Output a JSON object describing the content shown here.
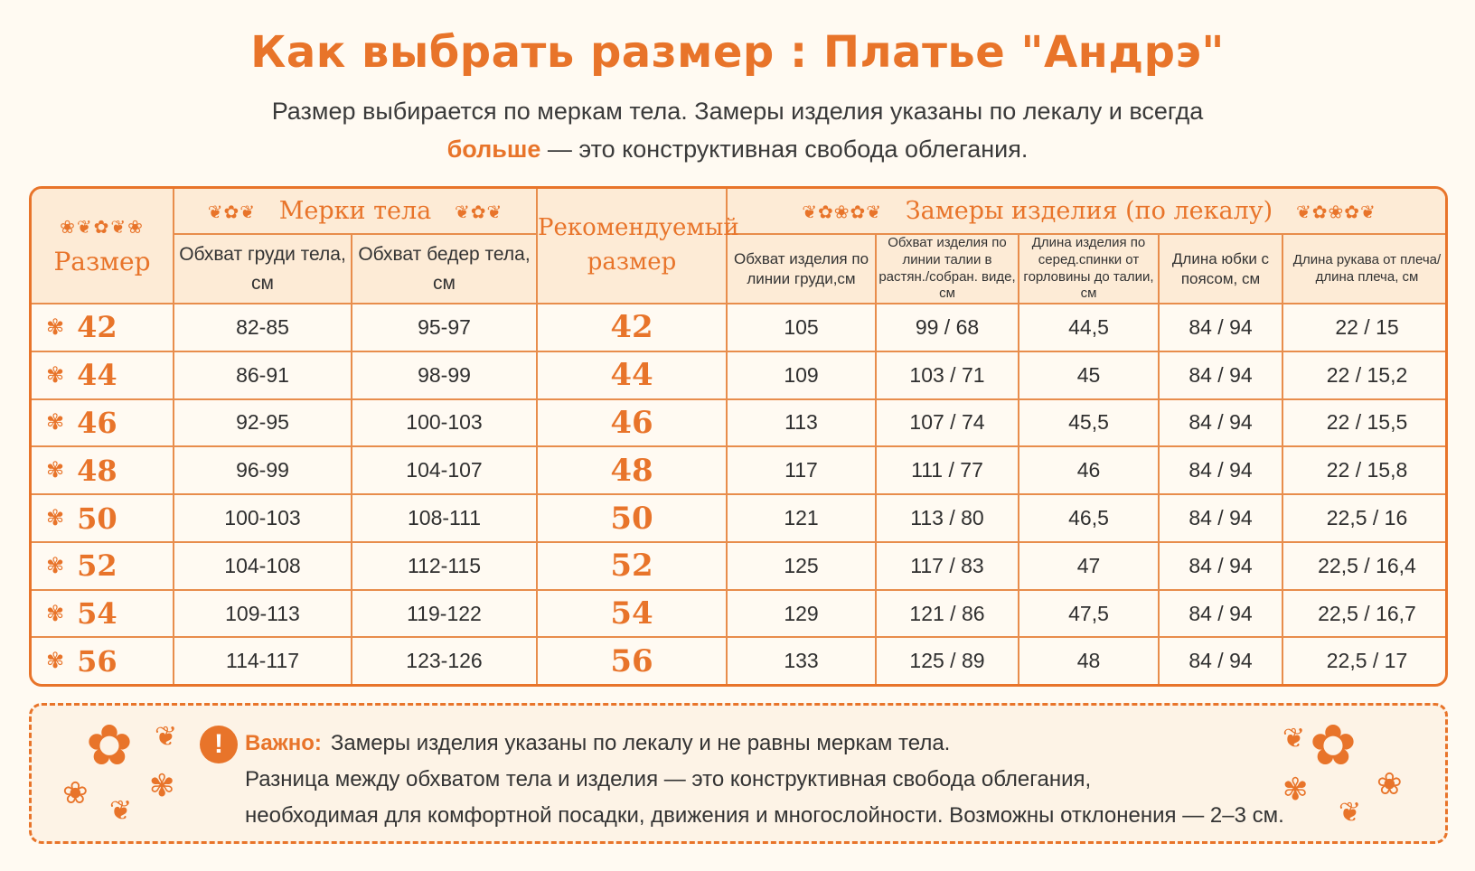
{
  "title": "Как выбрать размер :  Платье \"Андрэ\"",
  "subtitle_line1": "Размер выбирается по меркам тела. Замеры изделия указаны по лекалу и всегда",
  "subtitle_emphasis": "больше",
  "subtitle_line2_rest": " — это конструктивная свобода облегания.",
  "table": {
    "size_header": "Размер",
    "body_group": "Мерки тела",
    "recommended_header": "Рекомендуемый размер",
    "garment_group": "Замеры изделия (по лекалу)",
    "body_cols": [
      "Обхват груди тела, см",
      "Обхват бедер тела, см"
    ],
    "garment_cols": [
      "Обхват изделия по линии груди,см",
      "Обхват изделия по линии талии в растян./собран. виде, см",
      "Длина изделия по серед.спинки от горловины до талии, см",
      "Длина юбки с поясом, см",
      "Длина рукава от плеча/длина плеча, см"
    ],
    "rows": [
      {
        "size": "42",
        "chest": "82-85",
        "hips": "95-97",
        "rec": "42",
        "g_chest": "105",
        "g_waist": "99 / 68",
        "g_back": "44,5",
        "g_skirt": "84 / 94",
        "g_sleeve": "22 / 15"
      },
      {
        "size": "44",
        "chest": "86-91",
        "hips": "98-99",
        "rec": "44",
        "g_chest": "109",
        "g_waist": "103 / 71",
        "g_back": "45",
        "g_skirt": "84 / 94",
        "g_sleeve": "22 / 15,2"
      },
      {
        "size": "46",
        "chest": "92-95",
        "hips": "100-103",
        "rec": "46",
        "g_chest": "113",
        "g_waist": "107 / 74",
        "g_back": "45,5",
        "g_skirt": "84 / 94",
        "g_sleeve": "22 / 15,5"
      },
      {
        "size": "48",
        "chest": "96-99",
        "hips": "104-107",
        "rec": "48",
        "g_chest": "117",
        "g_waist": "111 / 77",
        "g_back": "46",
        "g_skirt": "84 / 94",
        "g_sleeve": "22 / 15,8"
      },
      {
        "size": "50",
        "chest": "100-103",
        "hips": "108-111",
        "rec": "50",
        "g_chest": "121",
        "g_waist": "113 / 80",
        "g_back": "46,5",
        "g_skirt": "84 / 94",
        "g_sleeve": "22,5 / 16"
      },
      {
        "size": "52",
        "chest": "104-108",
        "hips": "112-115",
        "rec": "52",
        "g_chest": "125",
        "g_waist": "117 / 83",
        "g_back": "47",
        "g_skirt": "84 / 94",
        "g_sleeve": "22,5 / 16,4"
      },
      {
        "size": "54",
        "chest": "109-113",
        "hips": "119-122",
        "rec": "54",
        "g_chest": "129",
        "g_waist": "121 / 86",
        "g_back": "47,5",
        "g_skirt": "84 / 94",
        "g_sleeve": "22,5 / 16,7"
      },
      {
        "size": "56",
        "chest": "114-117",
        "hips": "123-126",
        "rec": "56",
        "g_chest": "133",
        "g_waist": "125 / 89",
        "g_back": "48",
        "g_skirt": "84 / 94",
        "g_sleeve": "22,5 / 17"
      }
    ]
  },
  "note": {
    "icon": "exclamation-icon",
    "label": "Важно:",
    "line1": "Замеры изделия указаны по лекалу и не равны меркам тела.",
    "line2": "Разница между обхватом тела и изделия — это конструктивная свобода облегания,",
    "line3": "необходимая для комфортной посадки, движения и многослойности. Возможны отклонения — 2–3 см."
  },
  "colors": {
    "accent": "#e8742a",
    "header_bg": "#fdebd6",
    "page_bg": "#fffaf2"
  }
}
